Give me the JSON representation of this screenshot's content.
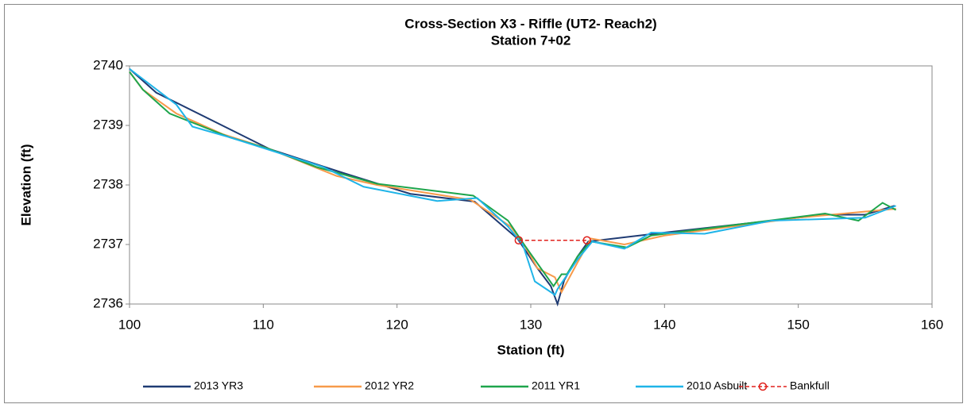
{
  "chart_data": {
    "type": "line",
    "title": "Cross-Section X3 - Riffle (UT2- Reach2)",
    "subtitle": "Station 7+02",
    "x_label": "Station (ft)",
    "y_label": "Elevation (ft)",
    "xlim": [
      100,
      160
    ],
    "xticks": [
      100,
      110,
      120,
      130,
      140,
      150,
      160
    ],
    "ylim": [
      2736,
      2740
    ],
    "yticks": [
      2736,
      2737,
      2738,
      2739,
      2740
    ],
    "grid": false,
    "legend": "bottom",
    "series": [
      {
        "name": "2013 YR3",
        "color": "#1f3b73",
        "x": [
          100,
          102,
          110.5,
          116,
          121,
          125.8,
          129,
          130.5,
          131.5,
          132,
          132.5,
          133.5,
          134.3,
          140,
          152,
          155,
          157.2
        ],
        "values": [
          2739.95,
          2739.55,
          2738.6,
          2738.2,
          2737.85,
          2737.72,
          2737.1,
          2736.6,
          2736.3,
          2736.0,
          2736.4,
          2736.8,
          2737.05,
          2737.2,
          2737.5,
          2737.5,
          2737.65
        ]
      },
      {
        "name": "2012 YR2",
        "color": "#f79a4a",
        "x": [
          100,
          101,
          103.5,
          107,
          110.5,
          115.5,
          118.5,
          125.5,
          128.5,
          129.5,
          130.5,
          131.8,
          132.3,
          133.5,
          134.5,
          137,
          140,
          150,
          157.3
        ],
        "values": [
          2739.9,
          2739.6,
          2739.2,
          2738.85,
          2738.6,
          2738.15,
          2738.0,
          2737.75,
          2737.3,
          2737.0,
          2736.6,
          2736.45,
          2736.2,
          2736.7,
          2737.1,
          2737.0,
          2737.15,
          2737.45,
          2737.6
        ]
      },
      {
        "name": "2011 YR1",
        "color": "#1ea54c",
        "x": [
          100,
          101,
          103,
          107.5,
          110.5,
          114,
          118.5,
          125.7,
          128.3,
          129.5,
          131.7,
          132.3,
          132.7,
          133.5,
          134.5,
          137.2,
          139,
          152,
          154.5,
          156.3,
          157.3
        ],
        "values": [
          2739.9,
          2739.6,
          2739.2,
          2738.8,
          2738.6,
          2738.3,
          2738.02,
          2737.82,
          2737.4,
          2737.0,
          2736.3,
          2736.5,
          2736.5,
          2736.8,
          2737.05,
          2736.95,
          2737.15,
          2737.52,
          2737.4,
          2737.7,
          2737.58
        ]
      },
      {
        "name": "2010 Asbuilt",
        "color": "#1fb4e8",
        "x": [
          100,
          103.5,
          104.7,
          107.5,
          114.5,
          117.5,
          123,
          126,
          128.3,
          129.4,
          130.3,
          131.5,
          131.8,
          132,
          133.5,
          134.6,
          137,
          139,
          143,
          148,
          155,
          157.3
        ],
        "values": [
          2739.95,
          2739.35,
          2738.98,
          2738.8,
          2738.3,
          2737.97,
          2737.73,
          2737.78,
          2737.3,
          2737.0,
          2736.38,
          2736.2,
          2736.15,
          2736.25,
          2736.75,
          2737.05,
          2736.93,
          2737.2,
          2737.18,
          2737.4,
          2737.45,
          2737.65
        ]
      },
      {
        "name": "Bankfull",
        "color": "#e0201b",
        "dashed": true,
        "markers": true,
        "x": [
          129.1,
          134.2
        ],
        "values": [
          2737.07,
          2737.07
        ]
      }
    ]
  }
}
